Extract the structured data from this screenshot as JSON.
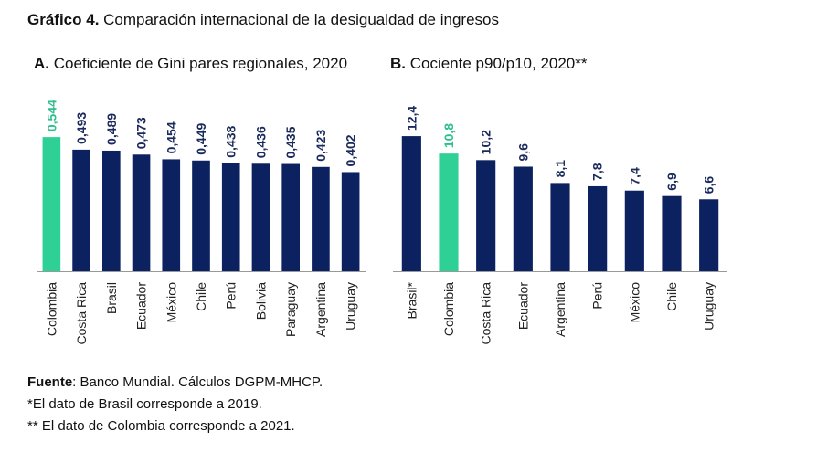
{
  "header": {
    "title_bold": "Gráfico 4.",
    "title_rest": " Comparación internacional de la desigualdad de ingresos"
  },
  "colors": {
    "navy": "#0b2160",
    "highlight": "#2fd096",
    "axis": "#999999",
    "navy_label": "#1a2a5c",
    "highlight_label": "#2fbf8c"
  },
  "chart_data": [
    {
      "type": "bar",
      "panel_letter": "A.",
      "title": " Coeficiente de Gini pares regionales, 2020",
      "categories": [
        "Colombia",
        "Costa Rica",
        "Brasil",
        "Ecuador",
        "México",
        "Chile",
        "Perú",
        "Bolivia",
        "Paraguay",
        "Argentina",
        "Uruguay"
      ],
      "values": [
        0.544,
        0.493,
        0.489,
        0.473,
        0.454,
        0.449,
        0.438,
        0.436,
        0.435,
        0.423,
        0.402
      ],
      "labels": [
        "0,544",
        "0,493",
        "0,489",
        "0,473",
        "0,454",
        "0,449",
        "0,438",
        "0,436",
        "0,435",
        "0,423",
        "0,402"
      ],
      "highlight": "Colombia",
      "ylim": [
        0,
        0.6
      ]
    },
    {
      "type": "bar",
      "panel_letter": "B.",
      "title": " Cociente p90/p10, 2020**",
      "categories": [
        "Brasil*",
        "Colombia",
        "Costa Rica",
        "Ecuador",
        "Argentina",
        "Perú",
        "México",
        "Chile",
        "Uruguay"
      ],
      "values": [
        12.4,
        10.8,
        10.2,
        9.6,
        8.1,
        7.8,
        7.4,
        6.9,
        6.6
      ],
      "labels": [
        "12,4",
        "10,8",
        "10,2",
        "9,6",
        "8,1",
        "7,8",
        "7,4",
        "6,9",
        "6,6"
      ],
      "highlight": "Colombia",
      "ylim": [
        0,
        14
      ]
    }
  ],
  "footer": {
    "source_bold": "Fuente",
    "source_rest": ": Banco Mundial. Cálculos DGPM-MHCP.",
    "note1": "*El dato de Brasil corresponde a 2019.",
    "note2": "** El dato de Colombia corresponde a 2021."
  }
}
